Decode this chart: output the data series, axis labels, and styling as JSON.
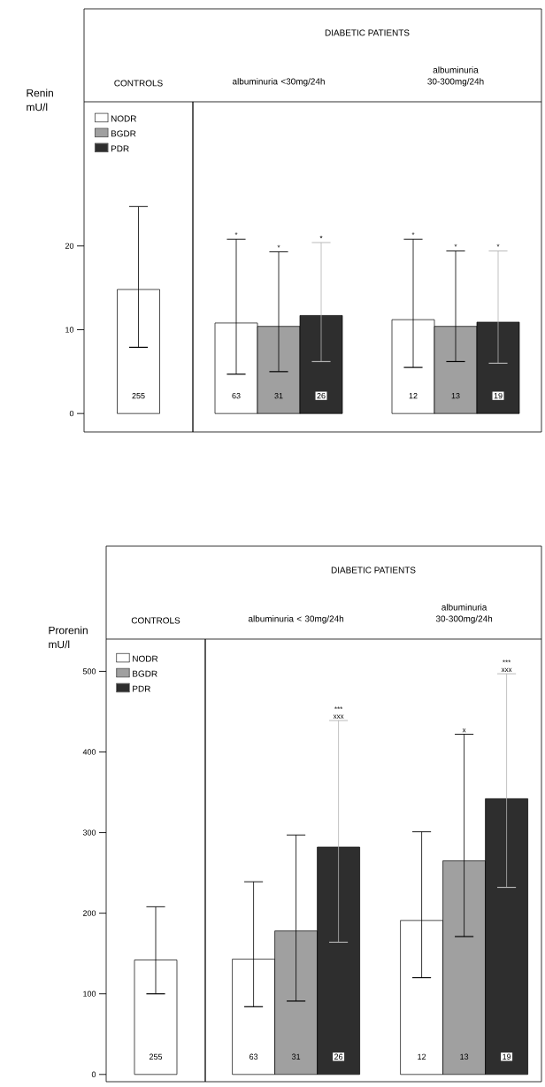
{
  "chart_data": [
    {
      "type": "bar",
      "ylabel": "Renin mU/l",
      "categories": [
        "CONTROLS"
      ],
      "series": [
        {
          "name": "NODR",
          "color": "#ffffff",
          "values": [
            14.8
          ],
          "errors": [
            [
              7.9,
              24.7
            ]
          ]
        },
        {
          "name": "BGDR",
          "color": "#a0a0a0",
          "values": [
            null
          ]
        },
        {
          "name": "PDR",
          "color": "#2e2e2e",
          "values": [
            null
          ]
        }
      ],
      "ylim": [
        -2.2,
        37.2
      ],
      "yticks": [
        0,
        10,
        20
      ],
      "legend": "top left",
      "annotations": [
        "255"
      ]
    },
    {
      "type": "bar",
      "title": "DIABETIC PATIENTS",
      "categories": [
        "albuminuria <30mg/24h",
        "albuminuria 30-300mg/24h"
      ],
      "series": [
        {
          "color": "#ffffff",
          "values": [
            10.8,
            11.2
          ],
          "errors": [
            [
              4.7,
              20.8
            ],
            [
              5.5,
              20.8
            ]
          ]
        },
        {
          "color": "#a0a0a0",
          "values": [
            10.4,
            10.4
          ],
          "errors": [
            [
              5.0,
              19.3
            ],
            [
              6.2,
              19.4
            ]
          ]
        },
        {
          "color": "#2e2e2e",
          "values": [
            11.7,
            10.9
          ],
          "errors": [
            [
              6.2,
              20.4
            ],
            [
              6.0,
              19.4
            ]
          ]
        }
      ],
      "ylim": [
        -2.2,
        37.2
      ],
      "tick_labels": false,
      "annotations": [
        "63",
        "31",
        "26",
        "12",
        "13",
        "19",
        "*",
        "*",
        "*",
        "*",
        "*",
        "*"
      ]
    },
    {
      "type": "bar",
      "ylabel": "Prorenin mU/l",
      "categories": [
        "CONTROLS"
      ],
      "series": [
        {
          "name": "NODR",
          "color": "#ffffff",
          "values": [
            142
          ],
          "errors": [
            [
              100,
              208
            ]
          ]
        },
        {
          "name": "BGDR",
          "color": "#a0a0a0",
          "values": [
            null
          ]
        },
        {
          "name": "PDR",
          "color": "#2e2e2e",
          "values": [
            null
          ]
        }
      ],
      "ylim": [
        -9,
        540
      ],
      "yticks": [
        0,
        100,
        200,
        300,
        400,
        500
      ],
      "legend": "top left",
      "annotations": [
        "255"
      ]
    },
    {
      "type": "bar",
      "title": "DIABETIC PATIENTS",
      "categories": [
        "albuminuria < 30mg/24h",
        "albuminuria 30-300mg/24h"
      ],
      "series": [
        {
          "color": "#ffffff",
          "values": [
            143,
            191
          ],
          "errors": [
            [
              84,
              239
            ],
            [
              120,
              301
            ]
          ]
        },
        {
          "color": "#a0a0a0",
          "values": [
            178,
            265
          ],
          "errors": [
            [
              91,
              297
            ],
            [
              171,
              422
            ]
          ]
        },
        {
          "color": "#2e2e2e",
          "values": [
            282,
            342
          ],
          "errors": [
            [
              164,
              439
            ],
            [
              232,
              497
            ]
          ]
        }
      ],
      "ylim": [
        -9,
        540
      ],
      "tick_labels": false,
      "annotations": [
        "63",
        "31",
        "26",
        "12",
        "13",
        "19",
        "xxx",
        "***",
        "x",
        "xxx",
        "***"
      ]
    }
  ]
}
